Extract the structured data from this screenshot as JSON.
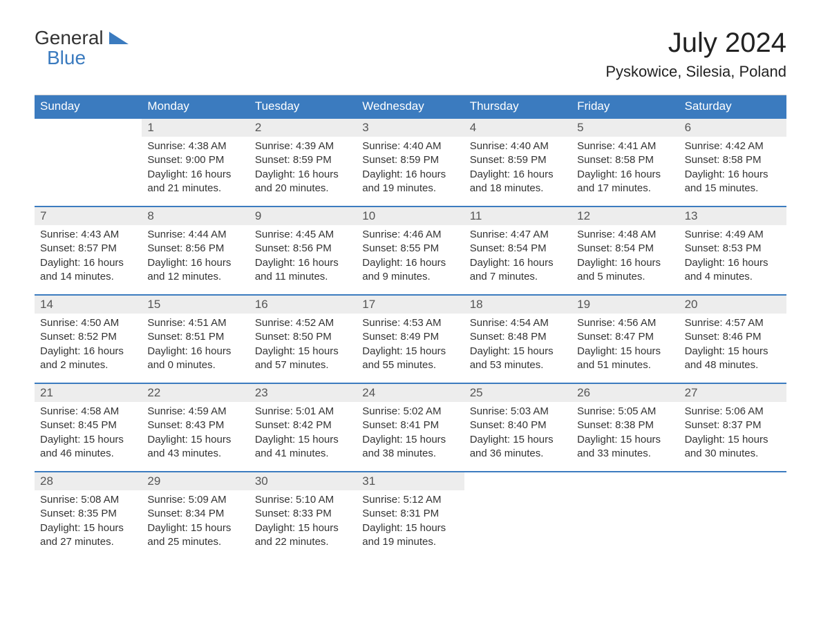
{
  "logo": {
    "line1": "General",
    "line2": "Blue"
  },
  "title": "July 2024",
  "location": "Pyskowice, Silesia, Poland",
  "colors": {
    "brand": "#3b7bbf",
    "header_bg": "#3b7bbf",
    "header_text": "#ffffff",
    "daynum_bg": "#ededed",
    "cell_border": "#3b7bbf",
    "text": "#333333",
    "background": "#ffffff"
  },
  "font": {
    "family": "Arial",
    "title_size_pt": 30,
    "location_size_pt": 17,
    "head_size_pt": 13,
    "body_size_pt": 11
  },
  "layout": {
    "columns": 7,
    "rows": 5,
    "first_weekday": "Sunday"
  },
  "weekdays": [
    "Sunday",
    "Monday",
    "Tuesday",
    "Wednesday",
    "Thursday",
    "Friday",
    "Saturday"
  ],
  "labels": {
    "sunrise": "Sunrise",
    "sunset": "Sunset",
    "daylight": "Daylight"
  },
  "cells": [
    {
      "empty": true,
      "day": ""
    },
    {
      "day": "1",
      "sunrise": "4:38 AM",
      "sunset": "9:00 PM",
      "daylight": "16 hours and 21 minutes."
    },
    {
      "day": "2",
      "sunrise": "4:39 AM",
      "sunset": "8:59 PM",
      "daylight": "16 hours and 20 minutes."
    },
    {
      "day": "3",
      "sunrise": "4:40 AM",
      "sunset": "8:59 PM",
      "daylight": "16 hours and 19 minutes."
    },
    {
      "day": "4",
      "sunrise": "4:40 AM",
      "sunset": "8:59 PM",
      "daylight": "16 hours and 18 minutes."
    },
    {
      "day": "5",
      "sunrise": "4:41 AM",
      "sunset": "8:58 PM",
      "daylight": "16 hours and 17 minutes."
    },
    {
      "day": "6",
      "sunrise": "4:42 AM",
      "sunset": "8:58 PM",
      "daylight": "16 hours and 15 minutes."
    },
    {
      "day": "7",
      "sunrise": "4:43 AM",
      "sunset": "8:57 PM",
      "daylight": "16 hours and 14 minutes."
    },
    {
      "day": "8",
      "sunrise": "4:44 AM",
      "sunset": "8:56 PM",
      "daylight": "16 hours and 12 minutes."
    },
    {
      "day": "9",
      "sunrise": "4:45 AM",
      "sunset": "8:56 PM",
      "daylight": "16 hours and 11 minutes."
    },
    {
      "day": "10",
      "sunrise": "4:46 AM",
      "sunset": "8:55 PM",
      "daylight": "16 hours and 9 minutes."
    },
    {
      "day": "11",
      "sunrise": "4:47 AM",
      "sunset": "8:54 PM",
      "daylight": "16 hours and 7 minutes."
    },
    {
      "day": "12",
      "sunrise": "4:48 AM",
      "sunset": "8:54 PM",
      "daylight": "16 hours and 5 minutes."
    },
    {
      "day": "13",
      "sunrise": "4:49 AM",
      "sunset": "8:53 PM",
      "daylight": "16 hours and 4 minutes."
    },
    {
      "day": "14",
      "sunrise": "4:50 AM",
      "sunset": "8:52 PM",
      "daylight": "16 hours and 2 minutes."
    },
    {
      "day": "15",
      "sunrise": "4:51 AM",
      "sunset": "8:51 PM",
      "daylight": "16 hours and 0 minutes."
    },
    {
      "day": "16",
      "sunrise": "4:52 AM",
      "sunset": "8:50 PM",
      "daylight": "15 hours and 57 minutes."
    },
    {
      "day": "17",
      "sunrise": "4:53 AM",
      "sunset": "8:49 PM",
      "daylight": "15 hours and 55 minutes."
    },
    {
      "day": "18",
      "sunrise": "4:54 AM",
      "sunset": "8:48 PM",
      "daylight": "15 hours and 53 minutes."
    },
    {
      "day": "19",
      "sunrise": "4:56 AM",
      "sunset": "8:47 PM",
      "daylight": "15 hours and 51 minutes."
    },
    {
      "day": "20",
      "sunrise": "4:57 AM",
      "sunset": "8:46 PM",
      "daylight": "15 hours and 48 minutes."
    },
    {
      "day": "21",
      "sunrise": "4:58 AM",
      "sunset": "8:45 PM",
      "daylight": "15 hours and 46 minutes."
    },
    {
      "day": "22",
      "sunrise": "4:59 AM",
      "sunset": "8:43 PM",
      "daylight": "15 hours and 43 minutes."
    },
    {
      "day": "23",
      "sunrise": "5:01 AM",
      "sunset": "8:42 PM",
      "daylight": "15 hours and 41 minutes."
    },
    {
      "day": "24",
      "sunrise": "5:02 AM",
      "sunset": "8:41 PM",
      "daylight": "15 hours and 38 minutes."
    },
    {
      "day": "25",
      "sunrise": "5:03 AM",
      "sunset": "8:40 PM",
      "daylight": "15 hours and 36 minutes."
    },
    {
      "day": "26",
      "sunrise": "5:05 AM",
      "sunset": "8:38 PM",
      "daylight": "15 hours and 33 minutes."
    },
    {
      "day": "27",
      "sunrise": "5:06 AM",
      "sunset": "8:37 PM",
      "daylight": "15 hours and 30 minutes."
    },
    {
      "day": "28",
      "sunrise": "5:08 AM",
      "sunset": "8:35 PM",
      "daylight": "15 hours and 27 minutes."
    },
    {
      "day": "29",
      "sunrise": "5:09 AM",
      "sunset": "8:34 PM",
      "daylight": "15 hours and 25 minutes."
    },
    {
      "day": "30",
      "sunrise": "5:10 AM",
      "sunset": "8:33 PM",
      "daylight": "15 hours and 22 minutes."
    },
    {
      "day": "31",
      "sunrise": "5:12 AM",
      "sunset": "8:31 PM",
      "daylight": "15 hours and 19 minutes."
    },
    {
      "empty": true,
      "day": ""
    },
    {
      "empty": true,
      "day": ""
    },
    {
      "empty": true,
      "day": ""
    }
  ]
}
